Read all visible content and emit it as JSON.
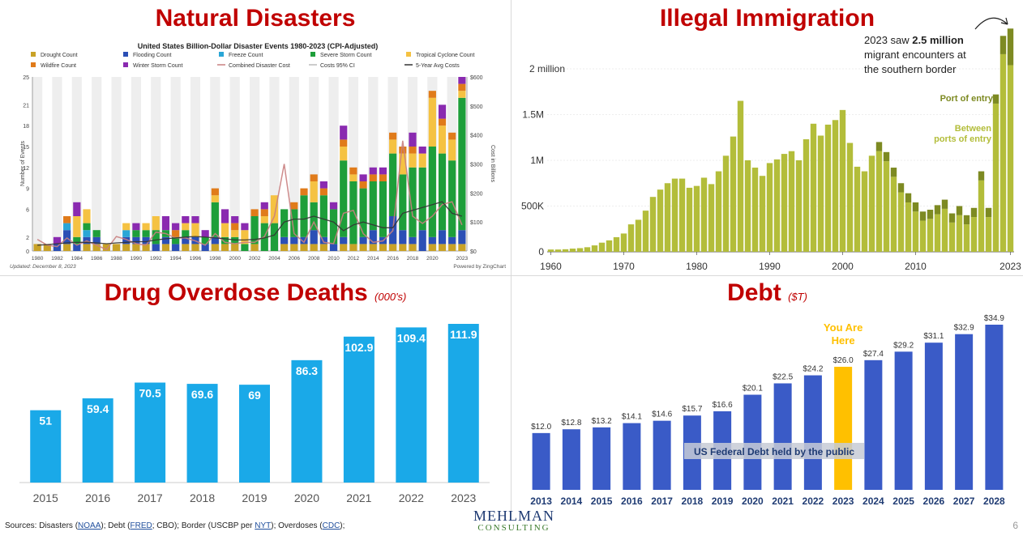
{
  "panels": {
    "disasters": {
      "title": "Natural Disasters"
    },
    "immigration": {
      "title": "Illegal Immigration"
    },
    "overdose": {
      "title": "Drug Overdose Deaths",
      "unit": "(000's)"
    },
    "debt": {
      "title": "Debt",
      "unit": "($T)"
    }
  },
  "colors": {
    "title_red": "#c00000",
    "drought": "#c9a227",
    "flooding": "#2b4fb5",
    "freeze": "#2aa6d6",
    "severe_storm": "#1e9e3a",
    "tropical_cyclone": "#f5c242",
    "wildfire": "#e07b1a",
    "winter_storm": "#8a2ab0",
    "immigration_between": "#b3bd3a",
    "immigration_port": "#7d8a22",
    "overdose_bar": "#1aa9e8",
    "debt_bar": "#3a5bc7",
    "debt_highlight": "#ffc000"
  },
  "chart_data": [
    {
      "id": "disasters",
      "type": "bar",
      "stacked": true,
      "title": "United States Billion-Dollar Disaster Events 1980-2023 (CPI-Adjusted)",
      "ylabel": "Number of Events",
      "y2label": "Cost in Billions",
      "ylim": [
        0,
        25
      ],
      "y2lim": [
        0,
        600
      ],
      "yticks": [
        "0",
        "2",
        "6",
        "9",
        "12",
        "15",
        "18",
        "21",
        "25"
      ],
      "y2ticks": [
        "$0",
        "$100",
        "$200",
        "$300",
        "$400",
        "$500",
        "$600"
      ],
      "xticks": [
        "1980",
        "1982",
        "1984",
        "1986",
        "1988",
        "1990",
        "1992",
        "1994",
        "1996",
        "1998",
        "2000",
        "2002",
        "2004",
        "2006",
        "2008",
        "2010",
        "2012",
        "2014",
        "2016",
        "2018",
        "2020",
        "2023"
      ],
      "legend": [
        "Drought Count",
        "Flooding Count",
        "Freeze Count",
        "Severe Storm Count",
        "Tropical Cyclone Count",
        "Wildfire Count",
        "Winter Storm Count",
        "Combined Disaster Cost",
        "Costs 95% CI",
        "5-Year Avg Costs"
      ],
      "legend_position": "top",
      "grid": false,
      "updated": "Updated: December 8, 2023",
      "powered": "Powered by ZingChart",
      "years": [
        1980,
        1981,
        1982,
        1983,
        1984,
        1985,
        1986,
        1987,
        1988,
        1989,
        1990,
        1991,
        1992,
        1993,
        1994,
        1995,
        1996,
        1997,
        1998,
        1999,
        2000,
        2001,
        2002,
        2003,
        2004,
        2005,
        2006,
        2007,
        2008,
        2009,
        2010,
        2011,
        2012,
        2013,
        2014,
        2015,
        2016,
        2017,
        2018,
        2019,
        2020,
        2021,
        2022,
        2023
      ],
      "series": [
        {
          "name": "Drought Count",
          "color_key": "drought",
          "values": [
            1,
            1,
            0,
            1,
            0,
            1,
            1,
            1,
            1,
            1,
            1,
            1,
            0,
            1,
            0,
            1,
            1,
            0,
            1,
            1,
            1,
            0,
            1,
            0,
            0,
            1,
            1,
            1,
            1,
            1,
            0,
            1,
            1,
            1,
            1,
            1,
            1,
            1,
            1,
            0,
            1,
            1,
            1,
            1
          ]
        },
        {
          "name": "Flooding Count",
          "color_key": "flooding",
          "values": [
            0,
            0,
            1,
            2,
            1,
            1,
            1,
            0,
            0,
            1,
            1,
            1,
            1,
            1,
            1,
            1,
            1,
            1,
            1,
            0,
            0,
            0,
            0,
            0,
            0,
            1,
            1,
            1,
            2,
            1,
            1,
            1,
            0,
            1,
            2,
            1,
            4,
            2,
            1,
            3,
            1,
            2,
            1,
            2
          ]
        },
        {
          "name": "Freeze Count",
          "color_key": "freeze",
          "values": [
            0,
            0,
            0,
            1,
            0,
            1,
            0,
            0,
            0,
            1,
            0,
            0,
            0,
            0,
            0,
            0,
            0,
            0,
            0,
            0,
            0,
            0,
            0,
            0,
            0,
            0,
            0,
            0,
            0,
            0,
            0,
            0,
            0,
            0,
            0,
            0,
            0,
            0,
            0,
            0,
            0,
            0,
            0,
            0
          ]
        },
        {
          "name": "Severe Storm Count",
          "color_key": "severe_storm",
          "values": [
            0,
            0,
            0,
            0,
            1,
            1,
            1,
            0,
            0,
            0,
            1,
            1,
            2,
            1,
            1,
            1,
            0,
            1,
            5,
            1,
            1,
            1,
            4,
            4,
            4,
            4,
            4,
            6,
            4,
            6,
            5,
            11,
            9,
            7,
            7,
            8,
            9,
            8,
            10,
            9,
            13,
            11,
            11,
            19
          ]
        },
        {
          "name": "Tropical Cyclone Count",
          "color_key": "tropical_cyclone",
          "values": [
            0,
            0,
            0,
            0,
            3,
            2,
            0,
            0,
            0,
            1,
            0,
            1,
            2,
            0,
            0,
            1,
            2,
            0,
            1,
            2,
            1,
            2,
            0,
            1,
            4,
            0,
            0,
            0,
            3,
            0,
            0,
            2,
            1,
            0,
            0,
            0,
            2,
            3,
            2,
            2,
            7,
            4,
            3,
            1
          ]
        },
        {
          "name": "Wildfire Count",
          "color_key": "wildfire",
          "values": [
            0,
            0,
            0,
            1,
            0,
            0,
            0,
            0,
            0,
            0,
            0,
            0,
            0,
            0,
            1,
            0,
            0,
            0,
            1,
            0,
            1,
            0,
            1,
            1,
            0,
            0,
            1,
            1,
            1,
            1,
            0,
            1,
            1,
            1,
            1,
            1,
            1,
            1,
            1,
            0,
            1,
            1,
            1,
            1
          ]
        },
        {
          "name": "Winter Storm Count",
          "color_key": "winter_storm",
          "values": [
            0,
            0,
            1,
            0,
            2,
            0,
            0,
            0,
            0,
            0,
            1,
            0,
            0,
            2,
            1,
            1,
            1,
            1,
            0,
            2,
            1,
            1,
            0,
            1,
            0,
            0,
            0,
            0,
            0,
            1,
            1,
            2,
            0,
            1,
            1,
            1,
            0,
            0,
            2,
            1,
            0,
            2,
            0,
            1
          ]
        }
      ],
      "cost_series": [
        {
          "name": "Combined Disaster Cost",
          "values": [
            40,
            20,
            15,
            45,
            20,
            35,
            20,
            5,
            50,
            40,
            25,
            20,
            65,
            60,
            45,
            45,
            35,
            20,
            60,
            30,
            25,
            30,
            30,
            50,
            120,
            300,
            60,
            30,
            100,
            30,
            25,
            130,
            140,
            60,
            30,
            35,
            70,
            380,
            120,
            95,
            120,
            160,
            170,
            90
          ]
        },
        {
          "name": "5-Year Avg Costs",
          "values": [
            20,
            22,
            25,
            28,
            30,
            30,
            28,
            25,
            28,
            30,
            32,
            32,
            38,
            42,
            45,
            48,
            50,
            48,
            45,
            42,
            38,
            38,
            40,
            45,
            55,
            100,
            110,
            110,
            120,
            110,
            100,
            70,
            90,
            100,
            90,
            80,
            80,
            130,
            140,
            150,
            160,
            170,
            130,
            120
          ]
        }
      ]
    },
    {
      "id": "immigration",
      "type": "bar",
      "stacked": true,
      "xticks": [
        "1960",
        "1970",
        "1980",
        "1990",
        "2000",
        "2010",
        "2023"
      ],
      "yticks": [
        "0",
        "500K",
        "1M",
        "1.5M",
        "2 million"
      ],
      "ylim": [
        0,
        2500000
      ],
      "annotation": {
        "pre": "2023 saw ",
        "strong": "2.5 million",
        "rest1": "migrant encounters at",
        "rest2": "the southern border"
      },
      "series_labels": {
        "port": "Port of entry",
        "between": "Between ports of entry"
      },
      "x": [
        1960,
        1961,
        1962,
        1963,
        1964,
        1965,
        1966,
        1967,
        1968,
        1969,
        1970,
        1971,
        1972,
        1973,
        1974,
        1975,
        1976,
        1977,
        1978,
        1979,
        1980,
        1981,
        1982,
        1983,
        1984,
        1985,
        1986,
        1987,
        1988,
        1989,
        1990,
        1991,
        1992,
        1993,
        1994,
        1995,
        1996,
        1997,
        1998,
        1999,
        2000,
        2001,
        2002,
        2003,
        2004,
        2005,
        2006,
        2007,
        2008,
        2009,
        2010,
        2011,
        2012,
        2013,
        2014,
        2015,
        2016,
        2017,
        2018,
        2019,
        2020,
        2021,
        2022,
        2023
      ],
      "series": [
        {
          "name": "Between ports of entry",
          "values": [
            25000,
            25000,
            28000,
            35000,
            40000,
            50000,
            70000,
            100000,
            125000,
            160000,
            200000,
            300000,
            350000,
            450000,
            600000,
            680000,
            750000,
            800000,
            800000,
            700000,
            720000,
            810000,
            740000,
            880000,
            1050000,
            1260000,
            1650000,
            1000000,
            920000,
            830000,
            970000,
            1010000,
            1070000,
            1100000,
            1000000,
            1230000,
            1400000,
            1270000,
            1390000,
            1440000,
            1550000,
            1190000,
            930000,
            880000,
            1050000,
            1100000,
            990000,
            820000,
            650000,
            540000,
            440000,
            340000,
            360000,
            410000,
            470000,
            320000,
            400000,
            300000,
            380000,
            780000,
            380000,
            1620000,
            2160000,
            2040000
          ]
        },
        {
          "name": "Port of entry",
          "values": [
            0,
            0,
            0,
            0,
            0,
            0,
            0,
            0,
            0,
            0,
            0,
            0,
            0,
            0,
            0,
            0,
            0,
            0,
            0,
            0,
            0,
            0,
            0,
            0,
            0,
            0,
            0,
            0,
            0,
            0,
            0,
            0,
            0,
            0,
            0,
            0,
            0,
            0,
            0,
            0,
            0,
            0,
            0,
            0,
            0,
            100000,
            100000,
            100000,
            100000,
            100000,
            100000,
            100000,
            100000,
            100000,
            100000,
            100000,
            100000,
            100000,
            100000,
            100000,
            100000,
            100000,
            200000,
            400000
          ]
        }
      ]
    },
    {
      "id": "overdose",
      "type": "bar",
      "categories": [
        "2015",
        "2016",
        "2017",
        "2018",
        "2019",
        "2020",
        "2021",
        "2022",
        "2023"
      ],
      "values": [
        51,
        59.4,
        70.5,
        69.6,
        69,
        86.3,
        102.9,
        109.4,
        111.9
      ],
      "labels": [
        "51",
        "59.4",
        "70.5",
        "69.6",
        "69",
        "86.3",
        "102.9",
        "109.4",
        "111.9"
      ],
      "ylim": [
        0,
        115
      ]
    },
    {
      "id": "debt",
      "type": "bar",
      "categories": [
        "2013",
        "2014",
        "2015",
        "2016",
        "2017",
        "2018",
        "2019",
        "2020",
        "2021",
        "2022",
        "2023",
        "2024",
        "2025",
        "2026",
        "2027",
        "2028"
      ],
      "values": [
        12.0,
        12.8,
        13.2,
        14.1,
        14.6,
        15.7,
        16.6,
        20.1,
        22.5,
        24.2,
        26.0,
        27.4,
        29.2,
        31.1,
        32.9,
        34.9
      ],
      "labels": [
        "$12.0",
        "$12.8",
        "$13.2",
        "$14.1",
        "$14.6",
        "$15.7",
        "$16.6",
        "$20.1",
        "$22.5",
        "$24.2",
        "$26.0",
        "$27.4",
        "$29.2",
        "$31.1",
        "$32.9",
        "$34.9"
      ],
      "highlight_index": 10,
      "highlight_text": [
        "You Are",
        "Here"
      ],
      "series_label": "US Federal Debt held by the public",
      "ylim": [
        0,
        36
      ]
    }
  ],
  "footer": {
    "sources_prefix": "Sources: Disasters (",
    "noaa": "NOAA",
    "after_noaa": "); Debt (",
    "fred": "FRED",
    "after_fred": "; CBO); Border (USCBP per ",
    "nyt": "NYT",
    "after_nyt": "); Overdoses (",
    "cdc": "CDC",
    "end": ");"
  },
  "logo": {
    "line1": "MEHLMAN",
    "line2": "CONSULTING"
  },
  "page_number": "6"
}
